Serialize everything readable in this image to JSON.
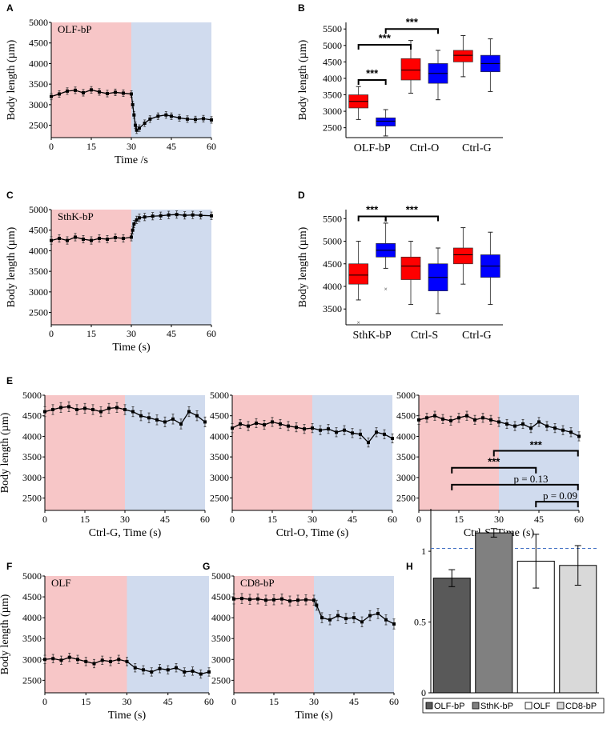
{
  "colors": {
    "red_phase": "#f7c6c7",
    "blue_phase": "#d0dbee",
    "box_red": "#ff0000",
    "box_blue": "#0000ff",
    "bar_olfbp": "#595959",
    "bar_sthkbp": "#808080",
    "bar_olf": "#ffffff",
    "bar_cd8bp": "#d9d9d9",
    "refline": "#4472c4"
  },
  "chart_data": [
    {
      "panel": "A",
      "type": "line",
      "title": "OLF-bP",
      "xlabel": "Time /s",
      "ylabel": "Body length (µm)",
      "xlim": [
        0,
        60
      ],
      "ylim": [
        2200,
        5000
      ],
      "xticks": [
        "0",
        "15",
        "30",
        "45",
        "60"
      ],
      "yticks": [
        "2500",
        "3000",
        "3500",
        "4000",
        "4500",
        "5000"
      ],
      "phases": [
        {
          "from": 0,
          "to": 30,
          "color": "red"
        },
        {
          "from": 30,
          "to": 60,
          "color": "blue"
        }
      ],
      "x": [
        0,
        3,
        6,
        9,
        12,
        15,
        18,
        21,
        24,
        27,
        30,
        30.5,
        31,
        31.5,
        32,
        33,
        35,
        37,
        40,
        43,
        45,
        48,
        51,
        54,
        57,
        60
      ],
      "y": [
        3200,
        3260,
        3330,
        3350,
        3290,
        3360,
        3310,
        3270,
        3300,
        3280,
        3260,
        3000,
        2750,
        2500,
        2380,
        2430,
        2550,
        2650,
        2720,
        2750,
        2720,
        2680,
        2650,
        2640,
        2660,
        2630
      ],
      "err": 80
    },
    {
      "panel": "B",
      "type": "box",
      "ylabel": "Body length (µm)",
      "ylim": [
        2200,
        5700
      ],
      "yticks": [
        "2500",
        "3000",
        "3500",
        "4000",
        "4500",
        "5000",
        "5500"
      ],
      "groups": [
        "OLF-bP",
        "Ctrl-O",
        "Ctrl-G"
      ],
      "boxes": [
        {
          "group": 0,
          "color": "red",
          "min": 2750,
          "q1": 3100,
          "median": 3300,
          "q3": 3500,
          "max": 3750,
          "outliers": []
        },
        {
          "group": 0,
          "color": "blue",
          "min": 2250,
          "q1": 2550,
          "median": 2700,
          "q3": 2800,
          "max": 3050,
          "outliers": []
        },
        {
          "group": 1,
          "color": "red",
          "min": 3550,
          "q1": 3950,
          "median": 4250,
          "q3": 4600,
          "max": 5150,
          "outliers": []
        },
        {
          "group": 1,
          "color": "blue",
          "min": 3350,
          "q1": 3850,
          "median": 4150,
          "q3": 4450,
          "max": 4850,
          "outliers": []
        },
        {
          "group": 2,
          "color": "red",
          "min": 4050,
          "q1": 4500,
          "median": 4700,
          "q3": 4850,
          "max": 5300,
          "outliers": []
        },
        {
          "group": 2,
          "color": "blue",
          "min": 3600,
          "q1": 4200,
          "median": 4450,
          "q3": 4700,
          "max": 5200,
          "outliers": []
        }
      ],
      "significance": [
        "***",
        "***",
        "***"
      ]
    },
    {
      "panel": "C",
      "type": "line",
      "title": "SthK-bP",
      "xlabel": "Time (s)",
      "ylabel": "Body length (µm)",
      "xlim": [
        0,
        60
      ],
      "ylim": [
        2200,
        5000
      ],
      "xticks": [
        "0",
        "15",
        "30",
        "45",
        "60"
      ],
      "yticks": [
        "2500",
        "3000",
        "3500",
        "4000",
        "4500",
        "5000"
      ],
      "phases": [
        {
          "from": 0,
          "to": 30,
          "color": "red"
        },
        {
          "from": 30,
          "to": 60,
          "color": "blue"
        }
      ],
      "x": [
        0,
        3,
        6,
        9,
        12,
        15,
        18,
        21,
        24,
        27,
        30,
        30.5,
        31,
        32,
        33,
        35,
        38,
        41,
        44,
        47,
        50,
        53,
        56,
        60
      ],
      "y": [
        4250,
        4300,
        4250,
        4330,
        4280,
        4250,
        4300,
        4280,
        4320,
        4300,
        4330,
        4500,
        4650,
        4750,
        4800,
        4820,
        4840,
        4850,
        4870,
        4880,
        4860,
        4870,
        4860,
        4850
      ],
      "err": 90
    },
    {
      "panel": "D",
      "type": "box",
      "ylabel": "Body length (µm)",
      "ylim": [
        3150,
        5700
      ],
      "yticks": [
        "3500",
        "4000",
        "4500",
        "5000",
        "5500"
      ],
      "groups": [
        "SthK-bP",
        "Ctrl-S",
        "Ctrl-G"
      ],
      "boxes": [
        {
          "group": 0,
          "color": "red",
          "min": 3700,
          "q1": 4050,
          "median": 4250,
          "q3": 4500,
          "max": 5000,
          "outliers": [
            3200
          ]
        },
        {
          "group": 0,
          "color": "blue",
          "min": 4400,
          "q1": 4650,
          "median": 4800,
          "q3": 4950,
          "max": 5400,
          "outliers": [
            3950,
            5450
          ]
        },
        {
          "group": 1,
          "color": "red",
          "min": 3600,
          "q1": 4150,
          "median": 4450,
          "q3": 4650,
          "max": 5000,
          "outliers": []
        },
        {
          "group": 1,
          "color": "blue",
          "min": 3400,
          "q1": 3900,
          "median": 4200,
          "q3": 4500,
          "max": 4850,
          "outliers": []
        },
        {
          "group": 2,
          "color": "red",
          "min": 4050,
          "q1": 4500,
          "median": 4700,
          "q3": 4850,
          "max": 5300,
          "outliers": []
        },
        {
          "group": 2,
          "color": "blue",
          "min": 3600,
          "q1": 4200,
          "median": 4450,
          "q3": 4700,
          "max": 5200,
          "outliers": []
        }
      ],
      "significance": [
        "***",
        "***"
      ]
    },
    {
      "panel": "E1",
      "type": "line",
      "xlabel": "Ctrl-G, Time (s)",
      "ylabel": "Body length (µm)",
      "xlim": [
        0,
        60
      ],
      "ylim": [
        2200,
        5000
      ],
      "xticks": [
        "0",
        "15",
        "30",
        "45",
        "60"
      ],
      "yticks": [
        "2500",
        "3000",
        "3500",
        "4000",
        "4500",
        "5000"
      ],
      "phases": [
        {
          "from": 0,
          "to": 30,
          "color": "red"
        },
        {
          "from": 30,
          "to": 60,
          "color": "blue"
        }
      ],
      "x": [
        0,
        3,
        6,
        9,
        12,
        15,
        18,
        21,
        24,
        27,
        30,
        33,
        36,
        39,
        42,
        45,
        48,
        51,
        54,
        57,
        60
      ],
      "y": [
        4600,
        4650,
        4700,
        4720,
        4650,
        4680,
        4650,
        4600,
        4680,
        4700,
        4650,
        4600,
        4500,
        4450,
        4400,
        4350,
        4420,
        4300,
        4600,
        4500,
        4350
      ],
      "err": 120
    },
    {
      "panel": "E2",
      "type": "line",
      "xlabel": "Ctrl-O, Time (s)",
      "xlim": [
        0,
        60
      ],
      "ylim": [
        2200,
        5000
      ],
      "xticks": [
        "0",
        "15",
        "30",
        "45",
        "60"
      ],
      "yticks": [
        "2500",
        "3000",
        "3500",
        "4000",
        "4500",
        "5000"
      ],
      "phases": [
        {
          "from": 0,
          "to": 30,
          "color": "red"
        },
        {
          "from": 30,
          "to": 60,
          "color": "blue"
        }
      ],
      "x": [
        0,
        3,
        6,
        9,
        12,
        15,
        18,
        21,
        24,
        27,
        30,
        33,
        36,
        39,
        42,
        45,
        48,
        51,
        54,
        57,
        60
      ],
      "y": [
        4200,
        4300,
        4250,
        4320,
        4280,
        4350,
        4300,
        4250,
        4220,
        4180,
        4200,
        4150,
        4180,
        4100,
        4150,
        4080,
        4050,
        3850,
        4100,
        4050,
        3950
      ],
      "err": 110
    },
    {
      "panel": "E3",
      "type": "line",
      "xlabel": "Ctrl-S, Time (s)",
      "xlim": [
        0,
        60
      ],
      "ylim": [
        2200,
        5000
      ],
      "xticks": [
        "0",
        "15",
        "30",
        "45",
        "60"
      ],
      "yticks": [
        "2500",
        "3000",
        "3500",
        "4000",
        "4500",
        "5000"
      ],
      "phases": [
        {
          "from": 0,
          "to": 30,
          "color": "red"
        },
        {
          "from": 30,
          "to": 60,
          "color": "blue"
        }
      ],
      "x": [
        0,
        3,
        6,
        9,
        12,
        15,
        18,
        21,
        24,
        27,
        30,
        33,
        36,
        39,
        42,
        45,
        48,
        51,
        54,
        57,
        60
      ],
      "y": [
        4400,
        4450,
        4500,
        4420,
        4380,
        4450,
        4500,
        4400,
        4450,
        4400,
        4350,
        4300,
        4250,
        4300,
        4200,
        4350,
        4250,
        4200,
        4150,
        4100,
        4000
      ],
      "err": 110
    },
    {
      "panel": "F",
      "type": "line",
      "title": "OLF",
      "xlabel": "Time (s)",
      "ylabel": "Body length (µm)",
      "xlim": [
        0,
        60
      ],
      "ylim": [
        2200,
        5000
      ],
      "xticks": [
        "0",
        "15",
        "30",
        "45",
        "60"
      ],
      "yticks": [
        "2500",
        "3000",
        "3500",
        "4000",
        "4500",
        "5000"
      ],
      "phases": [
        {
          "from": 0,
          "to": 30,
          "color": "red"
        },
        {
          "from": 30,
          "to": 60,
          "color": "blue"
        }
      ],
      "x": [
        0,
        3,
        6,
        9,
        12,
        15,
        18,
        21,
        24,
        27,
        30,
        33,
        36,
        39,
        42,
        45,
        48,
        51,
        54,
        57,
        60
      ],
      "y": [
        3000,
        3020,
        2980,
        3050,
        3000,
        2950,
        2900,
        2980,
        2950,
        3000,
        2950,
        2800,
        2750,
        2700,
        2780,
        2750,
        2800,
        2700,
        2720,
        2650,
        2700
      ],
      "err": 100
    },
    {
      "panel": "G",
      "type": "line",
      "title": "CD8-bP",
      "xlabel": "Time (s)",
      "xlim": [
        0,
        60
      ],
      "ylim": [
        2200,
        5000
      ],
      "xticks": [
        "0",
        "15",
        "30",
        "45",
        "60"
      ],
      "yticks": [
        "2500",
        "3000",
        "3500",
        "4000",
        "4500",
        "5000"
      ],
      "phases": [
        {
          "from": 0,
          "to": 30,
          "color": "red"
        },
        {
          "from": 30,
          "to": 60,
          "color": "blue"
        }
      ],
      "x": [
        0,
        3,
        6,
        9,
        12,
        15,
        18,
        21,
        24,
        27,
        30,
        31,
        33,
        36,
        39,
        42,
        45,
        48,
        51,
        54,
        57,
        60
      ],
      "y": [
        4450,
        4460,
        4440,
        4450,
        4420,
        4430,
        4450,
        4400,
        4420,
        4430,
        4420,
        4300,
        4000,
        3950,
        4050,
        3980,
        4000,
        3900,
        4050,
        4100,
        3950,
        3850
      ],
      "err": 120
    },
    {
      "panel": "H",
      "type": "bar",
      "ylim": [
        0,
        1.3
      ],
      "yticks": [
        "0",
        "0.5",
        "1"
      ],
      "categories": [
        "OLF-bP",
        "SthK-bP",
        "OLF",
        "CD8-bP"
      ],
      "values": [
        0.81,
        1.13,
        0.93,
        0.9
      ],
      "errors": [
        0.06,
        0.03,
        0.19,
        0.14
      ],
      "refline": 1.02,
      "significance": [
        "***",
        "***",
        "p = 0.13",
        "p = 0.09"
      ]
    }
  ]
}
